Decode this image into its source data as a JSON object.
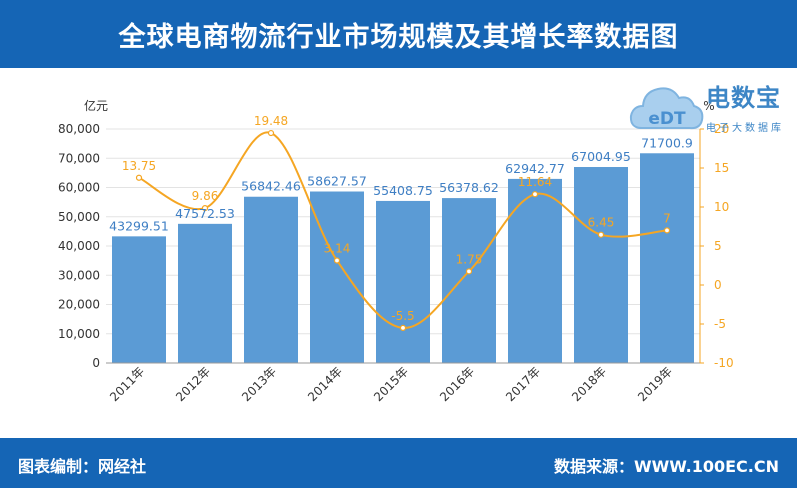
{
  "header": {
    "title": "全球电商物流行业市场规模及其增长率数据图"
  },
  "footer": {
    "left_text": "图表编制：网经社",
    "right_text": "数据来源：WWW.100EC.CN"
  },
  "logo": {
    "brand": "电数宝",
    "subtitle": "电子大数据库",
    "badge_text": "eDT"
  },
  "chart_data": {
    "type": "bar+line",
    "categories": [
      "2011年",
      "2012年",
      "2013年",
      "2014年",
      "2015年",
      "2016年",
      "2017年",
      "2018年",
      "2019年"
    ],
    "series": [
      {
        "type": "bar",
        "axis": "left",
        "values": [
          43299.51,
          47572.53,
          56842.46,
          58627.57,
          55408.75,
          56378.62,
          62942.77,
          67004.95,
          71700.9
        ],
        "labels": [
          "43299.51",
          "47572.53",
          "56842.46",
          "58627.57",
          "55408.75",
          "56378.62",
          "62942.77",
          "67004.95",
          "71700.9"
        ],
        "color": "#5b9bd5"
      },
      {
        "type": "line",
        "axis": "right",
        "smooth": true,
        "values": [
          13.75,
          9.86,
          19.48,
          3.14,
          -5.5,
          1.75,
          11.64,
          6.45,
          7
        ],
        "labels": [
          "13.75",
          "9.86",
          "19.48",
          "3.14",
          "-5.5",
          "1.75",
          "11.64",
          "6.45",
          "7"
        ],
        "color": "#f5a623"
      }
    ],
    "y_left": {
      "label": "亿元",
      "min": 0,
      "max": 80000,
      "ticks": [
        "0",
        "10,000",
        "20,000",
        "30,000",
        "40,000",
        "50,000",
        "60,000",
        "70,000",
        "80,000"
      ]
    },
    "y_right": {
      "label": "%",
      "min": -10,
      "max": 20,
      "ticks": [
        "-10",
        "-5",
        "0",
        "5",
        "10",
        "15",
        "20"
      ]
    },
    "grid": true,
    "legend": "none"
  }
}
